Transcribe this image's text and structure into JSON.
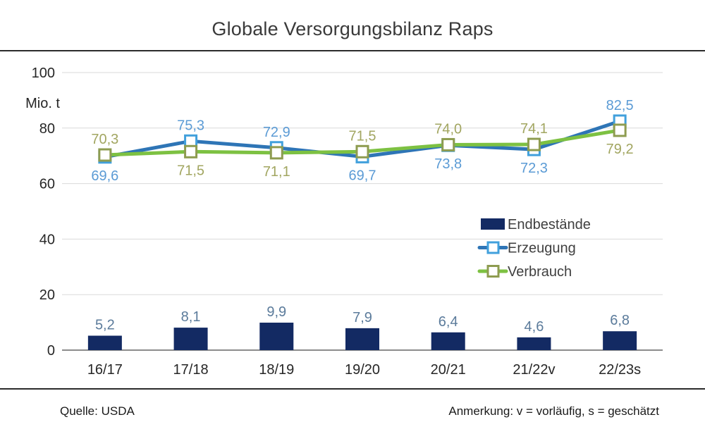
{
  "page": {
    "title": "Globale Versorgungsbilanz Raps",
    "footer_left": "Quelle: USDA",
    "footer_right": "Anmerkung: v = vorläufig, s = geschätzt"
  },
  "chart_data": {
    "type": "combo-bar-line",
    "title": "Globale Versorgungsbilanz Raps",
    "ylabel": "Mio. t",
    "xlabel": "",
    "ylim": [
      0,
      100
    ],
    "yticks": [
      0,
      20,
      40,
      60,
      80,
      100
    ],
    "grid": true,
    "legend_position": "center-right",
    "decimal_separator": ",",
    "categories": [
      "16/17",
      "17/18",
      "18/19",
      "19/20",
      "20/21",
      "21/22v",
      "22/23s"
    ],
    "series": [
      {
        "name": "Endbestände",
        "type": "bar",
        "values": [
          5.2,
          8.1,
          9.9,
          7.9,
          6.4,
          4.6,
          6.8
        ],
        "color": "#132a63",
        "label_color": "#5b7b9b"
      },
      {
        "name": "Erzeugung",
        "type": "line",
        "values": [
          69.6,
          75.3,
          72.9,
          69.7,
          73.8,
          72.3,
          82.5
        ],
        "color": "#2e75b6",
        "marker_border": "#41a0dc",
        "marker_fill": "#ffffff",
        "label_color": "#5b9bd5"
      },
      {
        "name": "Verbrauch",
        "type": "line",
        "values": [
          70.3,
          71.5,
          71.1,
          71.5,
          74.0,
          74.1,
          79.2
        ],
        "color": "#7dc142",
        "marker_border": "#8e9c50",
        "marker_fill": "#ffffff",
        "label_color": "#a2a661"
      }
    ],
    "colors": {
      "gridline": "#dadada",
      "zero_axis": "#8c8c8c",
      "axis_text": "#262626",
      "legend_text": "#3f3f3f"
    }
  }
}
